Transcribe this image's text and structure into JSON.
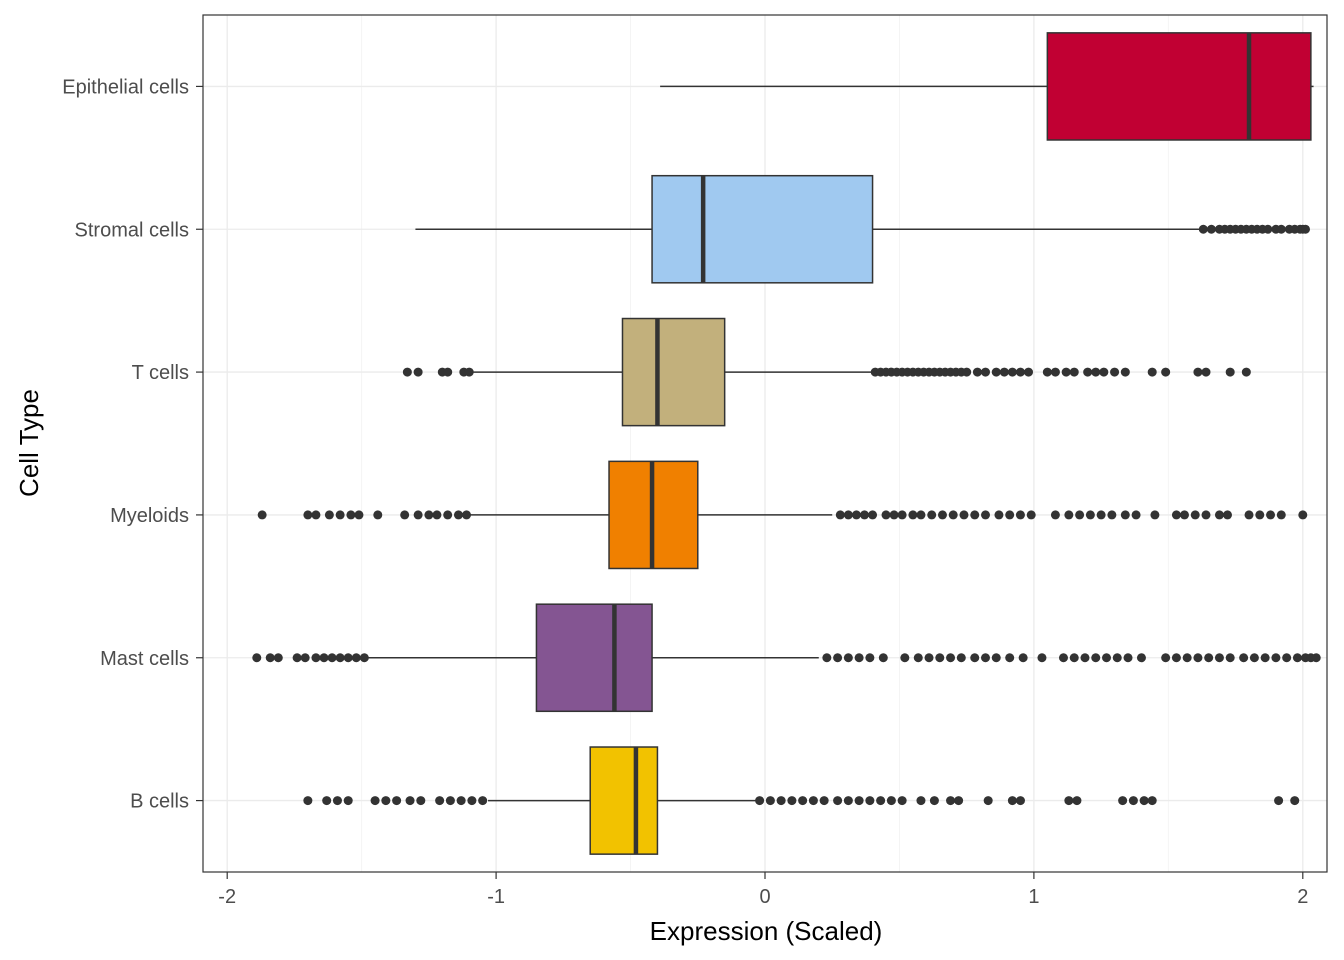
{
  "chart_data": {
    "type": "boxplot",
    "orientation": "horizontal",
    "xlabel": "Expression (Scaled)",
    "ylabel": "Cell Type",
    "xlim": [
      -2.09,
      2.09
    ],
    "xticks": [
      -2,
      -1,
      0,
      1,
      2
    ],
    "xtick_labels": [
      "-2",
      "-1",
      "0",
      "1",
      "2"
    ],
    "grid": true,
    "legend": "none",
    "categories": [
      "Epithelial cells",
      "Stromal cells",
      "T cells",
      "Myeloids",
      "Mast cells",
      "B cells"
    ],
    "series": [
      {
        "category": "Epithelial cells",
        "color": "#C10033",
        "whisker_low": -0.39,
        "q1": 1.05,
        "median": 1.8,
        "q3": 2.03,
        "whisker_high": 2.04,
        "outliers": []
      },
      {
        "category": "Stromal cells",
        "color": "#A0C9F0",
        "whisker_low": -1.3,
        "q1": -0.42,
        "median": -0.23,
        "q3": 0.4,
        "whisker_high": 1.62,
        "outliers": [
          1.63,
          1.66,
          1.69,
          1.71,
          1.73,
          1.75,
          1.77,
          1.79,
          1.81,
          1.83,
          1.85,
          1.87,
          1.9,
          1.92,
          1.95,
          1.97,
          1.99,
          2.0,
          2.01
        ]
      },
      {
        "category": "T cells",
        "color": "#C2B07C",
        "whisker_low": -1.1,
        "q1": -0.53,
        "median": -0.4,
        "q3": -0.15,
        "whisker_high": 0.4,
        "outliers": [
          -1.33,
          -1.29,
          -1.2,
          -1.18,
          -1.12,
          -1.1,
          0.41,
          0.43,
          0.45,
          0.47,
          0.49,
          0.51,
          0.53,
          0.55,
          0.57,
          0.59,
          0.61,
          0.63,
          0.65,
          0.67,
          0.69,
          0.71,
          0.73,
          0.75,
          0.79,
          0.82,
          0.86,
          0.89,
          0.92,
          0.95,
          0.98,
          1.05,
          1.08,
          1.12,
          1.15,
          1.2,
          1.23,
          1.26,
          1.3,
          1.34,
          1.44,
          1.49,
          1.61,
          1.64,
          1.73,
          1.79
        ]
      },
      {
        "category": "Myeloids",
        "color": "#F08000",
        "whisker_low": -1.1,
        "q1": -0.58,
        "median": -0.42,
        "q3": -0.25,
        "whisker_high": 0.25,
        "outliers": [
          -1.87,
          -1.7,
          -1.67,
          -1.62,
          -1.58,
          -1.54,
          -1.51,
          -1.44,
          -1.34,
          -1.29,
          -1.25,
          -1.22,
          -1.18,
          -1.14,
          -1.11,
          0.28,
          0.31,
          0.34,
          0.37,
          0.4,
          0.45,
          0.48,
          0.51,
          0.55,
          0.58,
          0.62,
          0.66,
          0.7,
          0.74,
          0.78,
          0.82,
          0.87,
          0.91,
          0.95,
          0.99,
          1.08,
          1.13,
          1.17,
          1.21,
          1.25,
          1.29,
          1.34,
          1.38,
          1.45,
          1.53,
          1.56,
          1.6,
          1.64,
          1.69,
          1.72,
          1.8,
          1.84,
          1.88,
          1.92,
          2.0
        ]
      },
      {
        "category": "Mast cells",
        "color": "#845592",
        "whisker_low": -1.48,
        "q1": -0.85,
        "median": -0.56,
        "q3": -0.42,
        "whisker_high": 0.2,
        "outliers": [
          -1.89,
          -1.84,
          -1.81,
          -1.74,
          -1.71,
          -1.67,
          -1.64,
          -1.61,
          -1.58,
          -1.55,
          -1.52,
          -1.49,
          0.23,
          0.27,
          0.31,
          0.35,
          0.39,
          0.44,
          0.52,
          0.57,
          0.61,
          0.65,
          0.69,
          0.73,
          0.78,
          0.82,
          0.86,
          0.91,
          0.96,
          1.03,
          1.11,
          1.15,
          1.19,
          1.23,
          1.27,
          1.31,
          1.35,
          1.4,
          1.49,
          1.53,
          1.57,
          1.61,
          1.65,
          1.69,
          1.73,
          1.78,
          1.82,
          1.86,
          1.9,
          1.94,
          1.98,
          2.01,
          2.03,
          2.05
        ]
      },
      {
        "category": "B cells",
        "color": "#F2C200",
        "whisker_low": -1.03,
        "q1": -0.65,
        "median": -0.48,
        "q3": -0.4,
        "whisker_high": -0.03,
        "outliers": [
          -1.7,
          -1.63,
          -1.59,
          -1.55,
          -1.45,
          -1.41,
          -1.37,
          -1.32,
          -1.28,
          -1.21,
          -1.17,
          -1.13,
          -1.09,
          -1.05,
          -0.02,
          0.02,
          0.06,
          0.1,
          0.14,
          0.18,
          0.22,
          0.27,
          0.31,
          0.35,
          0.39,
          0.43,
          0.47,
          0.51,
          0.58,
          0.63,
          0.69,
          0.72,
          0.83,
          0.92,
          0.95,
          1.13,
          1.16,
          1.33,
          1.37,
          1.41,
          1.44,
          1.91,
          1.97
        ]
      }
    ]
  }
}
